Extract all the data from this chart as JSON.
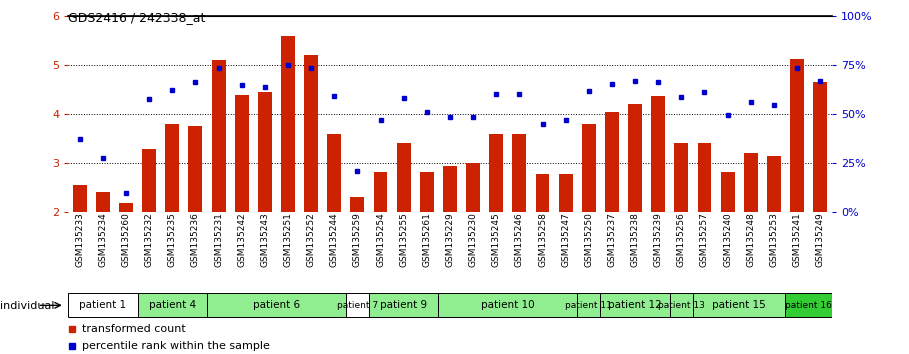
{
  "title": "GDS2416 / 242338_at",
  "samples": [
    "GSM135233",
    "GSM135234",
    "GSM135260",
    "GSM135232",
    "GSM135235",
    "GSM135236",
    "GSM135231",
    "GSM135242",
    "GSM135243",
    "GSM135251",
    "GSM135252",
    "GSM135244",
    "GSM135259",
    "GSM135254",
    "GSM135255",
    "GSM135261",
    "GSM135229",
    "GSM135230",
    "GSM135245",
    "GSM135246",
    "GSM135258",
    "GSM135247",
    "GSM135250",
    "GSM135237",
    "GSM135238",
    "GSM135239",
    "GSM135256",
    "GSM135257",
    "GSM135240",
    "GSM135248",
    "GSM135253",
    "GSM135241",
    "GSM135249"
  ],
  "bar_values": [
    2.55,
    2.42,
    2.2,
    3.3,
    3.8,
    3.75,
    5.1,
    4.4,
    4.45,
    5.6,
    5.2,
    3.6,
    2.32,
    2.82,
    3.42,
    2.82,
    2.95,
    3.0,
    3.6,
    3.6,
    2.78,
    2.78,
    3.8,
    4.05,
    4.2,
    4.38,
    3.42,
    3.42,
    2.82,
    3.2,
    3.15,
    5.12,
    4.65
  ],
  "dot_values": [
    3.5,
    3.1,
    2.4,
    4.3,
    4.5,
    4.65,
    4.95,
    4.6,
    4.55,
    5.0,
    4.95,
    4.38,
    2.85,
    3.88,
    4.32,
    4.05,
    3.95,
    3.95,
    4.42,
    4.42,
    3.8,
    3.88,
    4.48,
    4.62,
    4.68,
    4.65,
    4.35,
    4.45,
    3.98,
    4.25,
    4.18,
    4.95,
    4.68
  ],
  "patients": [
    {
      "label": "patient 1",
      "start": 0,
      "end": 2,
      "color": "#ffffff"
    },
    {
      "label": "patient 4",
      "start": 3,
      "end": 5,
      "color": "#90ee90"
    },
    {
      "label": "patient 6",
      "start": 6,
      "end": 11,
      "color": "#90ee90"
    },
    {
      "label": "patient 7",
      "start": 12,
      "end": 12,
      "color": "#ffffff"
    },
    {
      "label": "patient 9",
      "start": 13,
      "end": 15,
      "color": "#90ee90"
    },
    {
      "label": "patient 10",
      "start": 16,
      "end": 21,
      "color": "#90ee90"
    },
    {
      "label": "patient 11",
      "start": 22,
      "end": 22,
      "color": "#90ee90"
    },
    {
      "label": "patient 12",
      "start": 23,
      "end": 25,
      "color": "#90ee90"
    },
    {
      "label": "patient 13",
      "start": 26,
      "end": 26,
      "color": "#90ee90"
    },
    {
      "label": "patient 15",
      "start": 27,
      "end": 30,
      "color": "#90ee90"
    },
    {
      "label": "patient 16",
      "start": 31,
      "end": 32,
      "color": "#32cd32"
    }
  ],
  "ylim": [
    2.0,
    6.0
  ],
  "yticks_left": [
    2,
    3,
    4,
    5,
    6
  ],
  "yticks_right": [
    0,
    25,
    50,
    75,
    100
  ],
  "right_ylabels": [
    "0%",
    "25%",
    "50%",
    "75%",
    "100%"
  ],
  "bar_color": "#cc2200",
  "dot_color": "#0000cc",
  "bar_width": 0.6,
  "dotted_lines": [
    3,
    4,
    5
  ],
  "legend_bar": "transformed count",
  "legend_dot": "percentile rank within the sample",
  "individual_label": "individual"
}
